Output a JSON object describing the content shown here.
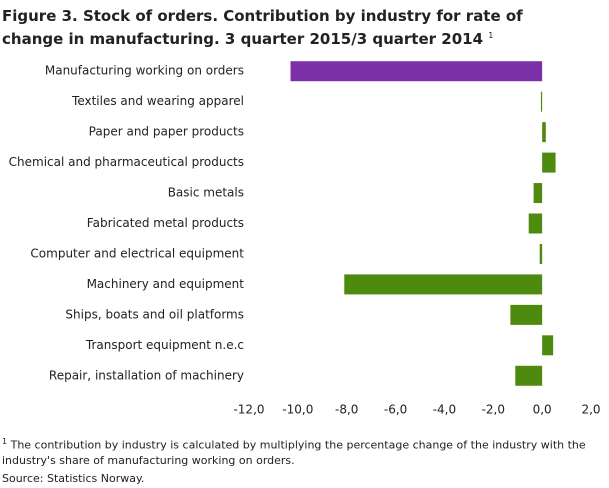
{
  "chart_data": {
    "type": "barh",
    "title": "Figure 3. Stock of orders.  Contribution by industry for rate of change in manufacturing. 3 quarter 2015/3 quarter 2014",
    "title_note": "1",
    "categories": [
      "Manufacturing working on orders",
      "Textiles and wearing apparel",
      "Paper and paper products",
      "Chemical and pharmaceutical products",
      "Basic metals",
      "Fabricated metal products",
      "Computer and electrical equipment",
      "Machinery and equipment",
      "Ships, boats and oil platforms",
      "Transport equipment n.e.c",
      "Repair, installation of machinery"
    ],
    "values": [
      -10.3,
      -0.05,
      0.15,
      0.55,
      -0.35,
      -0.55,
      -0.1,
      -8.1,
      -1.3,
      0.45,
      -1.1
    ],
    "colors": [
      "#7b2fa8",
      "#4e8a0e",
      "#4e8a0e",
      "#4e8a0e",
      "#4e8a0e",
      "#4e8a0e",
      "#4e8a0e",
      "#4e8a0e",
      "#4e8a0e",
      "#4e8a0e",
      "#4e8a0e"
    ],
    "xlim": [
      -12,
      2
    ],
    "xticks": [
      {
        "value": -12,
        "label": "-12,0"
      },
      {
        "value": -10,
        "label": "-10,0"
      },
      {
        "value": -8,
        "label": "-8,0"
      },
      {
        "value": -6,
        "label": "-6,0"
      },
      {
        "value": -4,
        "label": "-4,0"
      },
      {
        "value": -2,
        "label": "-2,0"
      },
      {
        "value": 0,
        "label": "0,0"
      },
      {
        "value": 2,
        "label": "2,0"
      }
    ],
    "grid": false,
    "footnote": {
      "marker": "1",
      "text": "The contribution  by industry is calculated by multiplying  the percentage change of the industry with the industry's share of manufacturing working on orders."
    },
    "source": "Source: Statistics Norway."
  }
}
